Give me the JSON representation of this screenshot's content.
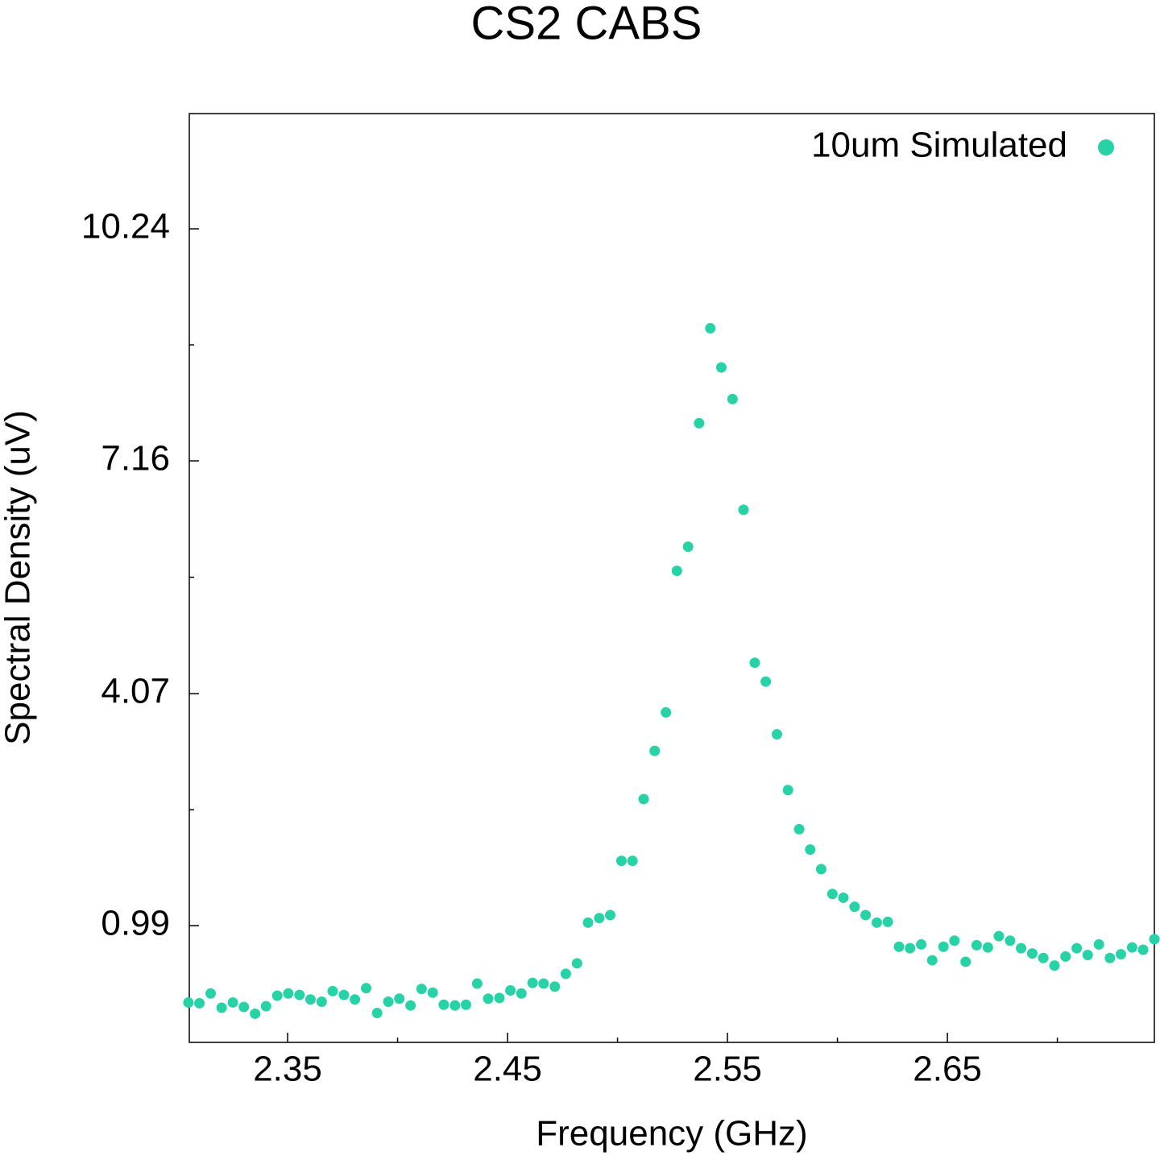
{
  "chart_data": {
    "type": "scatter",
    "title": "CS2 CABS",
    "x_label": "Frequency (GHz)",
    "y_label": "Spectral Density (uV)",
    "xlim": [
      2.3053,
      2.7441
    ],
    "ylim": [
      -0.56,
      11.77
    ],
    "xticks": [
      2.35,
      2.45,
      2.55,
      2.65
    ],
    "yticks": [
      0.99,
      4.07,
      7.16,
      10.24
    ],
    "xminorticks": [
      2.4,
      2.5,
      2.6,
      2.7
    ],
    "yminorticks": [
      2.53,
      5.615,
      8.7
    ],
    "legend": "upper right",
    "grid": false,
    "series": [
      {
        "name": "10um Simulated",
        "color": "#27d3a6",
        "x": [
          2.3049,
          2.3099,
          2.315,
          2.32,
          2.3251,
          2.3301,
          2.3352,
          2.3402,
          2.3453,
          2.3503,
          2.3554,
          2.3604,
          2.3655,
          2.3705,
          2.3756,
          2.3806,
          2.3857,
          2.3907,
          2.3958,
          2.4008,
          2.4059,
          2.4109,
          2.416,
          2.421,
          2.4261,
          2.4311,
          2.4362,
          2.4412,
          2.4463,
          2.4513,
          2.4563,
          2.4614,
          2.4664,
          2.4715,
          2.4765,
          2.4816,
          2.4866,
          2.4917,
          2.4967,
          2.5018,
          2.5068,
          2.5119,
          2.5169,
          2.522,
          2.527,
          2.5321,
          2.5371,
          2.5422,
          2.5472,
          2.5523,
          2.5573,
          2.5624,
          2.5674,
          2.5725,
          2.5775,
          2.5826,
          2.5876,
          2.5926,
          2.5977,
          2.6027,
          2.6078,
          2.6128,
          2.6179,
          2.6229,
          2.628,
          2.633,
          2.6381,
          2.6431,
          2.6482,
          2.6532,
          2.6583,
          2.6633,
          2.6684,
          2.6734,
          2.6785,
          2.6835,
          2.6886,
          2.6936,
          2.6987,
          2.7037,
          2.7088,
          2.7138,
          2.7189,
          2.7239,
          2.7289,
          2.734,
          2.739,
          2.7441
        ],
        "values": [
          -0.03,
          -0.04,
          0.09,
          -0.1,
          -0.03,
          -0.09,
          -0.18,
          -0.08,
          0.06,
          0.09,
          0.07,
          0.01,
          -0.02,
          0.12,
          0.07,
          0.01,
          0.16,
          -0.17,
          -0.02,
          0.02,
          -0.07,
          0.15,
          0.1,
          -0.06,
          -0.07,
          -0.06,
          0.22,
          0.02,
          0.03,
          0.13,
          0.09,
          0.23,
          0.22,
          0.18,
          0.35,
          0.49,
          1.03,
          1.09,
          1.13,
          1.85,
          1.85,
          2.67,
          3.31,
          3.82,
          5.7,
          6.02,
          7.66,
          8.92,
          8.4,
          7.98,
          6.51,
          4.48,
          4.23,
          3.53,
          2.79,
          2.27,
          2.0,
          1.74,
          1.41,
          1.36,
          1.24,
          1.13,
          1.03,
          1.04,
          0.71,
          0.69,
          0.74,
          0.53,
          0.71,
          0.79,
          0.51,
          0.73,
          0.7,
          0.85,
          0.79,
          0.69,
          0.62,
          0.56,
          0.46,
          0.58,
          0.69,
          0.6,
          0.74,
          0.56,
          0.61,
          0.7,
          0.67,
          0.81
        ]
      }
    ]
  }
}
